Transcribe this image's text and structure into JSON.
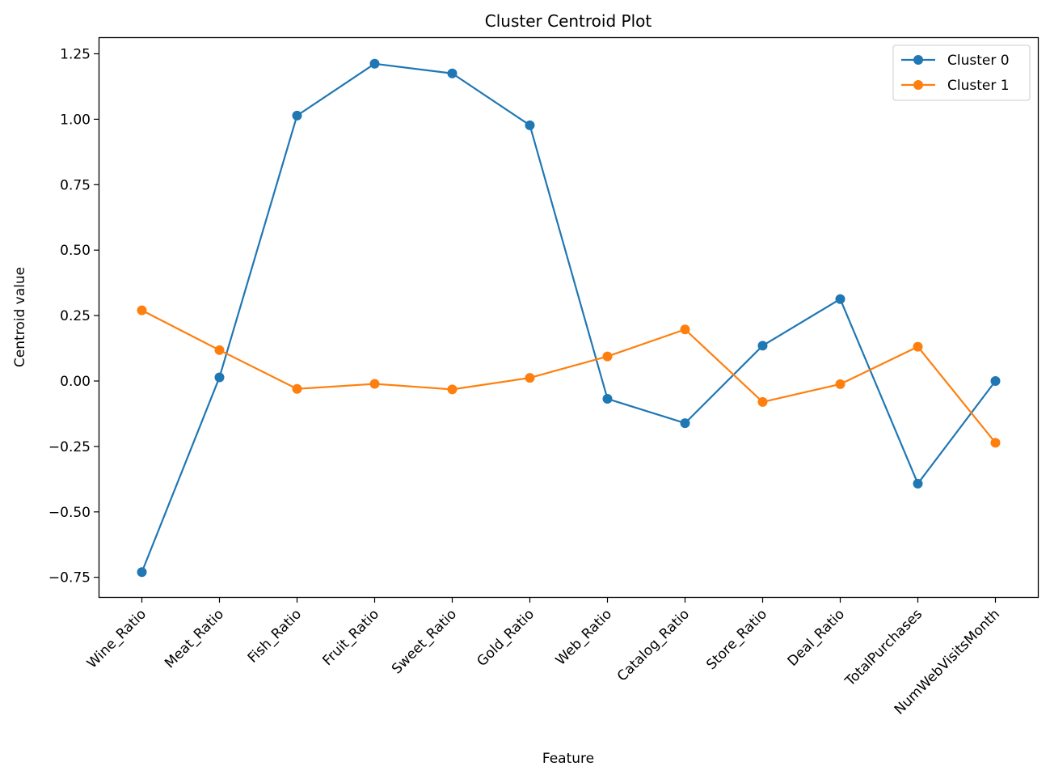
{
  "chart_data": {
    "type": "line",
    "title": "Cluster Centroid Plot",
    "xlabel": "Feature",
    "ylabel": "Centroid value",
    "categories": [
      "Wine_Ratio",
      "Meat_Ratio",
      "Fish_Ratio",
      "Fruit_Ratio",
      "Sweet_Ratio",
      "Gold_Ratio",
      "Web_Ratio",
      "Catalog_Ratio",
      "Store_Ratio",
      "Deal_Ratio",
      "TotalPurchases",
      "NumWebVisitsMonth"
    ],
    "series": [
      {
        "name": "Cluster 0",
        "color": "#1f77b4",
        "values": [
          -0.73,
          0.014,
          1.014,
          1.212,
          1.175,
          0.977,
          -0.068,
          -0.161,
          0.135,
          0.313,
          -0.392,
          0.0
        ]
      },
      {
        "name": "Cluster 1",
        "color": "#ff7f0e",
        "values": [
          0.27,
          0.118,
          -0.03,
          -0.011,
          -0.032,
          0.012,
          0.094,
          0.197,
          -0.08,
          -0.012,
          0.131,
          -0.236
        ]
      }
    ],
    "ylim": [
      -0.825,
      1.31
    ],
    "yticks": [
      -0.75,
      -0.5,
      -0.25,
      0.0,
      0.25,
      0.5,
      0.75,
      1.0,
      1.25
    ],
    "ytick_labels": [
      "−0.75",
      "−0.50",
      "−0.25",
      "0.00",
      "0.25",
      "0.50",
      "0.75",
      "1.00",
      "1.25"
    ],
    "grid": false,
    "legend": "top-right"
  }
}
